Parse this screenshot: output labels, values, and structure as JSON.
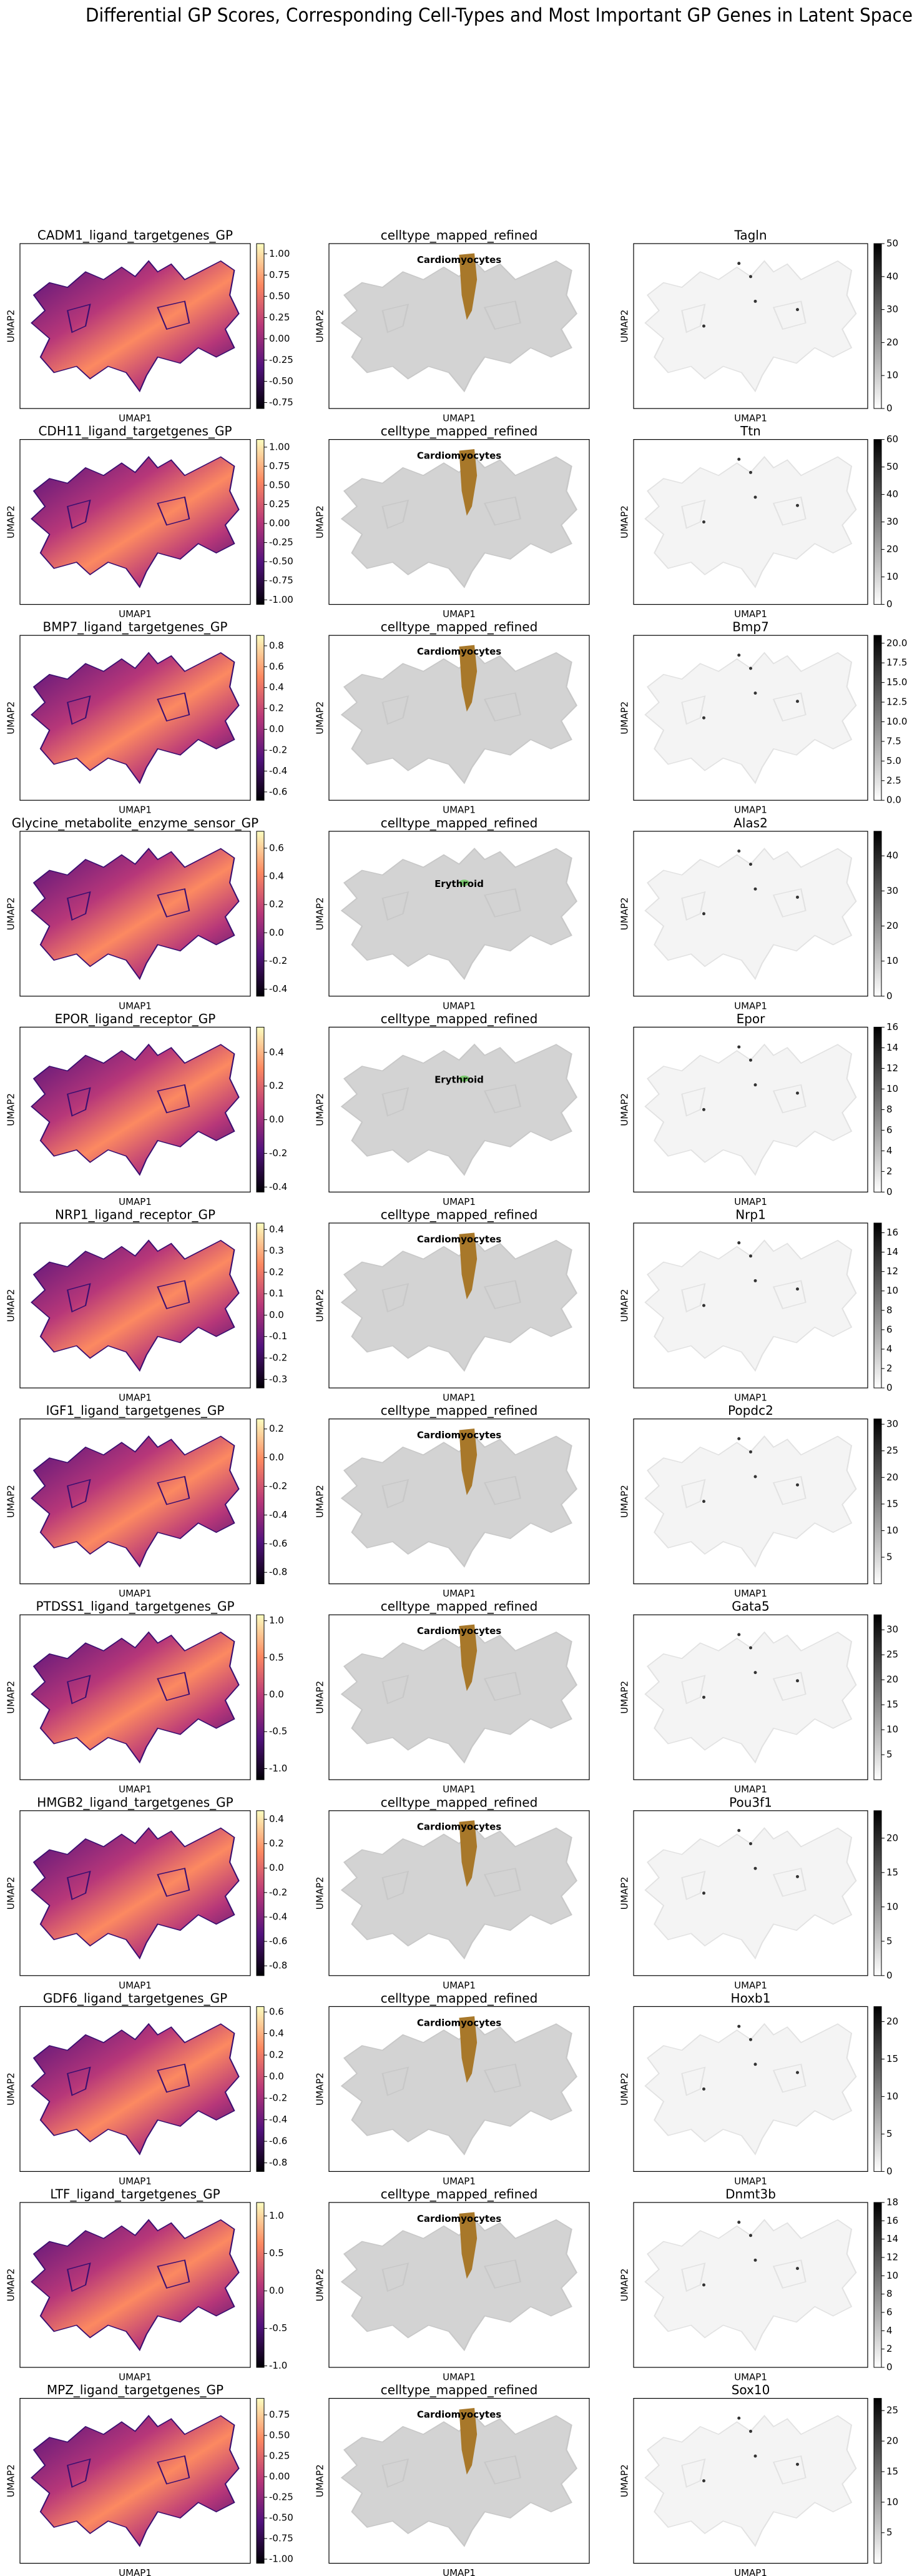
{
  "figure_title": "Differential GP Scores, Corresponding Cell-Types and Most Important GP Genes in Latent Space",
  "chart_data": [
    {
      "type": "scatter",
      "title": "CADM1_ligand_targetgenes_GP",
      "xlabel": "UMAP1",
      "ylabel": "UMAP2",
      "colormap": "magma",
      "clim": [
        -0.82,
        1.12
      ],
      "cticks": [
        -0.75,
        {
          "value": -0.5,
          "label": "-0.50"
        },
        -0.25,
        {
          "value": 0,
          "label": "0.00"
        },
        0.25,
        {
          "value": 0.5,
          "label": "0.50"
        },
        0.75,
        {
          "value": 1,
          "label": "1.00"
        }
      ]
    },
    {
      "type": "scatter",
      "title": "celltype_mapped_refined",
      "xlabel": "UMAP1",
      "ylabel": "UMAP2",
      "annotation": "Cardiomyocytes",
      "highlight_color": "#a8782a"
    },
    {
      "type": "scatter",
      "title": "Tagln",
      "xlabel": "UMAP1",
      "ylabel": "UMAP2",
      "colormap": "Greys",
      "clim": [
        0,
        50
      ],
      "cticks": [
        0,
        10,
        20,
        30,
        40,
        50
      ]
    },
    {
      "type": "scatter",
      "title": "CDH11_ligand_targetgenes_GP",
      "xlabel": "UMAP1",
      "ylabel": "UMAP2",
      "colormap": "magma",
      "clim": [
        -1.06,
        1.1
      ],
      "cticks": [
        {
          "value": -1,
          "label": "-1.00"
        },
        -0.75,
        {
          "value": -0.5,
          "label": "-0.50"
        },
        -0.25,
        {
          "value": 0,
          "label": "0.00"
        },
        0.25,
        {
          "value": 0.5,
          "label": "0.50"
        },
        0.75,
        {
          "value": 1,
          "label": "1.00"
        }
      ]
    },
    {
      "type": "scatter",
      "title": "celltype_mapped_refined",
      "xlabel": "UMAP1",
      "ylabel": "UMAP2",
      "annotation": "Cardiomyocytes",
      "highlight_color": "#a8782a"
    },
    {
      "type": "scatter",
      "title": "Ttn",
      "xlabel": "UMAP1",
      "ylabel": "UMAP2",
      "colormap": "Greys",
      "clim": [
        0,
        60
      ],
      "cticks": [
        0,
        10,
        20,
        30,
        40,
        50,
        60
      ]
    },
    {
      "type": "scatter",
      "title": "BMP7_ligand_targetgenes_GP",
      "xlabel": "UMAP1",
      "ylabel": "UMAP2",
      "colormap": "magma",
      "clim": [
        -0.68,
        0.9
      ],
      "cticks": [
        -0.6,
        -0.4,
        -0.2,
        {
          "value": 0,
          "label": "0.0"
        },
        0.2,
        0.4,
        0.6,
        0.8
      ]
    },
    {
      "type": "scatter",
      "title": "celltype_mapped_refined",
      "xlabel": "UMAP1",
      "ylabel": "UMAP2",
      "annotation": "Cardiomyocytes",
      "highlight_color": "#a8782a"
    },
    {
      "type": "scatter",
      "title": "Bmp7",
      "xlabel": "UMAP1",
      "ylabel": "UMAP2",
      "colormap": "Greys",
      "clim": [
        0,
        21
      ],
      "cticks": [
        {
          "value": 0,
          "label": "0.0"
        },
        2.5,
        {
          "value": 5,
          "label": "5.0"
        },
        7.5,
        {
          "value": 10,
          "label": "10.0"
        },
        12.5,
        {
          "value": 15,
          "label": "15.0"
        },
        17.5,
        {
          "value": 20,
          "label": "20.0"
        }
      ]
    },
    {
      "type": "scatter",
      "title": "Glycine_metabolite_enzyme_sensor_GP",
      "xlabel": "UMAP1",
      "ylabel": "UMAP2",
      "colormap": "magma",
      "clim": [
        -0.45,
        0.72
      ],
      "cticks": [
        -0.4,
        -0.2,
        {
          "value": 0,
          "label": "0.0"
        },
        0.2,
        0.4,
        0.6
      ]
    },
    {
      "type": "scatter",
      "title": "celltype_mapped_refined",
      "xlabel": "UMAP1",
      "ylabel": "UMAP2",
      "annotation": "Erythroid",
      "highlight_color": "#7bc96f"
    },
    {
      "type": "scatter",
      "title": "Alas2",
      "xlabel": "UMAP1",
      "ylabel": "UMAP2",
      "colormap": "Greys",
      "clim": [
        0,
        47
      ],
      "cticks": [
        0,
        10,
        20,
        30,
        40
      ]
    },
    {
      "type": "scatter",
      "title": "EPOR_ligand_receptor_GP",
      "xlabel": "UMAP1",
      "ylabel": "UMAP2",
      "colormap": "magma",
      "clim": [
        -0.43,
        0.55
      ],
      "cticks": [
        -0.4,
        -0.2,
        {
          "value": 0,
          "label": "0.0"
        },
        0.2,
        0.4
      ]
    },
    {
      "type": "scatter",
      "title": "celltype_mapped_refined",
      "xlabel": "UMAP1",
      "ylabel": "UMAP2",
      "annotation": "Erythroid",
      "highlight_color": "#7bc96f"
    },
    {
      "type": "scatter",
      "title": "Epor",
      "xlabel": "UMAP1",
      "ylabel": "UMAP2",
      "colormap": "Greys",
      "clim": [
        0,
        16
      ],
      "cticks": [
        0,
        2,
        4,
        6,
        8,
        10,
        12,
        14,
        16
      ]
    },
    {
      "type": "scatter",
      "title": "NRP1_ligand_receptor_GP",
      "xlabel": "UMAP1",
      "ylabel": "UMAP2",
      "colormap": "magma",
      "clim": [
        -0.34,
        0.43
      ],
      "cticks": [
        -0.3,
        -0.2,
        -0.1,
        {
          "value": 0,
          "label": "0.0"
        },
        0.1,
        0.2,
        0.3,
        0.4
      ]
    },
    {
      "type": "scatter",
      "title": "celltype_mapped_refined",
      "xlabel": "UMAP1",
      "ylabel": "UMAP2",
      "annotation": "Cardiomyocytes",
      "highlight_color": "#a8782a"
    },
    {
      "type": "scatter",
      "title": "Nrp1",
      "xlabel": "UMAP1",
      "ylabel": "UMAP2",
      "colormap": "Greys",
      "clim": [
        0,
        17
      ],
      "cticks": [
        0,
        2,
        4,
        6,
        8,
        10,
        12,
        14,
        16
      ]
    },
    {
      "type": "scatter",
      "title": "IGF1_ligand_targetgenes_GP",
      "xlabel": "UMAP1",
      "ylabel": "UMAP2",
      "colormap": "magma",
      "clim": [
        -0.88,
        0.27
      ],
      "cticks": [
        -0.8,
        -0.6,
        -0.4,
        -0.2,
        {
          "value": 0,
          "label": "0.0"
        },
        0.2
      ]
    },
    {
      "type": "scatter",
      "title": "celltype_mapped_refined",
      "xlabel": "UMAP1",
      "ylabel": "UMAP2",
      "annotation": "Cardiomyocytes",
      "highlight_color": "#a8782a"
    },
    {
      "type": "scatter",
      "title": "Popdc2",
      "xlabel": "UMAP1",
      "ylabel": "UMAP2",
      "colormap": "Greys",
      "clim": [
        0,
        31
      ],
      "cticks": [
        5,
        10,
        15,
        20,
        25,
        30
      ]
    },
    {
      "type": "scatter",
      "title": "PTDSS1_ligand_targetgenes_GP",
      "xlabel": "UMAP1",
      "ylabel": "UMAP2",
      "colormap": "magma",
      "clim": [
        -1.15,
        1.08
      ],
      "cticks": [
        {
          "value": -1,
          "label": "-1.0"
        },
        -0.5,
        {
          "value": 0,
          "label": "0.0"
        },
        0.5,
        {
          "value": 1,
          "label": "1.0"
        }
      ]
    },
    {
      "type": "scatter",
      "title": "celltype_mapped_refined",
      "xlabel": "UMAP1",
      "ylabel": "UMAP2",
      "annotation": "Cardiomyocytes",
      "highlight_color": "#a8782a"
    },
    {
      "type": "scatter",
      "title": "Gata5",
      "xlabel": "UMAP1",
      "ylabel": "UMAP2",
      "colormap": "Greys",
      "clim": [
        0,
        33
      ],
      "cticks": [
        5,
        10,
        15,
        20,
        25,
        30
      ]
    },
    {
      "type": "scatter",
      "title": "HMGB2_ligand_targetgenes_GP",
      "xlabel": "UMAP1",
      "ylabel": "UMAP2",
      "colormap": "magma",
      "clim": [
        -0.88,
        0.47
      ],
      "cticks": [
        -0.8,
        -0.6,
        -0.4,
        -0.2,
        {
          "value": 0,
          "label": "0.0"
        },
        0.2,
        0.4
      ]
    },
    {
      "type": "scatter",
      "title": "celltype_mapped_refined",
      "xlabel": "UMAP1",
      "ylabel": "UMAP2",
      "annotation": "Cardiomyocytes",
      "highlight_color": "#a8782a"
    },
    {
      "type": "scatter",
      "title": "Pou3f1",
      "xlabel": "UMAP1",
      "ylabel": "UMAP2",
      "colormap": "Greys",
      "clim": [
        0,
        24
      ],
      "cticks": [
        0,
        5,
        10,
        15,
        20
      ]
    },
    {
      "type": "scatter",
      "title": "GDF6_ligand_targetgenes_GP",
      "xlabel": "UMAP1",
      "ylabel": "UMAP2",
      "colormap": "magma",
      "clim": [
        -0.88,
        0.65
      ],
      "cticks": [
        -0.8,
        -0.6,
        -0.4,
        -0.2,
        {
          "value": 0,
          "label": "0.0"
        },
        0.2,
        0.4,
        0.6
      ]
    },
    {
      "type": "scatter",
      "title": "celltype_mapped_refined",
      "xlabel": "UMAP1",
      "ylabel": "UMAP2",
      "annotation": "Cardiomyocytes",
      "highlight_color": "#a8782a"
    },
    {
      "type": "scatter",
      "title": "Hoxb1",
      "xlabel": "UMAP1",
      "ylabel": "UMAP2",
      "colormap": "Greys",
      "clim": [
        0,
        22
      ],
      "cticks": [
        0,
        5,
        10,
        15,
        20
      ]
    },
    {
      "type": "scatter",
      "title": "LTF_ligand_targetgenes_GP",
      "xlabel": "UMAP1",
      "ylabel": "UMAP2",
      "colormap": "magma",
      "clim": [
        -1.02,
        1.18
      ],
      "cticks": [
        {
          "value": -1,
          "label": "-1.0"
        },
        -0.5,
        {
          "value": 0,
          "label": "0.0"
        },
        0.5,
        {
          "value": 1,
          "label": "1.0"
        }
      ]
    },
    {
      "type": "scatter",
      "title": "celltype_mapped_refined",
      "xlabel": "UMAP1",
      "ylabel": "UMAP2",
      "annotation": "Cardiomyocytes",
      "highlight_color": "#a8782a"
    },
    {
      "type": "scatter",
      "title": "Dnmt3b",
      "xlabel": "UMAP1",
      "ylabel": "UMAP2",
      "colormap": "Greys",
      "clim": [
        0,
        18
      ],
      "cticks": [
        0,
        2,
        4,
        6,
        8,
        10,
        12,
        14,
        16,
        18
      ]
    },
    {
      "type": "scatter",
      "title": "MPZ_ligand_targetgenes_GP",
      "xlabel": "UMAP1",
      "ylabel": "UMAP2",
      "colormap": "magma",
      "clim": [
        -1.05,
        0.95
      ],
      "cticks": [
        {
          "value": -1,
          "label": "-1.00"
        },
        -0.75,
        {
          "value": -0.5,
          "label": "-0.50"
        },
        -0.25,
        {
          "value": 0,
          "label": "0.00"
        },
        0.25,
        {
          "value": 0.5,
          "label": "0.50"
        },
        0.75
      ]
    },
    {
      "type": "scatter",
      "title": "celltype_mapped_refined",
      "xlabel": "UMAP1",
      "ylabel": "UMAP2",
      "annotation": "Cardiomyocytes",
      "highlight_color": "#a8782a"
    },
    {
      "type": "scatter",
      "title": "Sox10",
      "xlabel": "UMAP1",
      "ylabel": "UMAP2",
      "colormap": "Greys",
      "clim": [
        0,
        27
      ],
      "cticks": [
        5,
        10,
        15,
        20,
        25
      ]
    }
  ]
}
